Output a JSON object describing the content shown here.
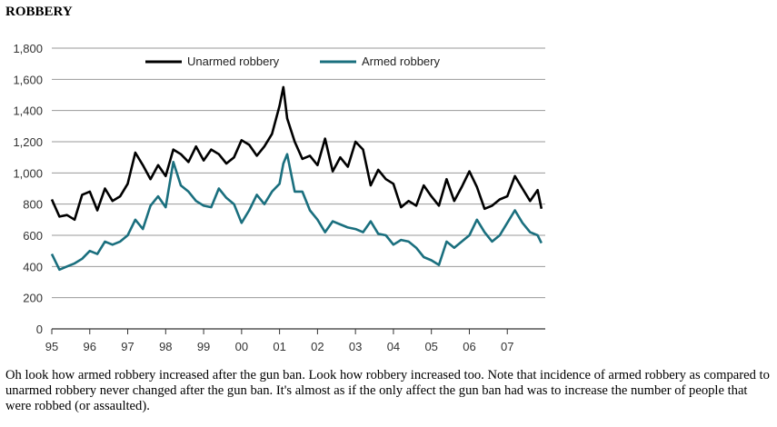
{
  "heading": "ROBBERY",
  "caption": "Oh look how armed robbery increased after the gun ban. Look how robbery increased too. Note that incidence of armed robbery as compared to unarmed robbery never changed after the gun ban. It's almost as if the only affect the gun ban had was to increase the number of people that were robbed (or assaulted).",
  "chart_data": {
    "type": "line",
    "title": "",
    "xlabel": "",
    "ylabel": "",
    "ylim": [
      0,
      1800
    ],
    "yticks": [
      0,
      200,
      400,
      600,
      800,
      1000,
      1200,
      1400,
      1600,
      1800
    ],
    "ytick_labels": [
      "0",
      "200",
      "400",
      "600",
      "800",
      "1,000",
      "1,200",
      "1,400",
      "1,600",
      "1,800"
    ],
    "xlim": [
      1995,
      2008
    ],
    "xticks": [
      1995,
      1996,
      1997,
      1998,
      1999,
      2000,
      2001,
      2002,
      2003,
      2004,
      2005,
      2006,
      2007
    ],
    "xtick_labels": [
      "95",
      "96",
      "97",
      "98",
      "99",
      "00",
      "01",
      "02",
      "03",
      "04",
      "05",
      "06",
      "07"
    ],
    "grid": "horizontal",
    "legend_position": "top",
    "series": [
      {
        "name": "Unarmed robbery",
        "color": "#000000",
        "x": [
          1995.0,
          1995.2,
          1995.4,
          1995.6,
          1995.8,
          1996.0,
          1996.2,
          1996.4,
          1996.6,
          1996.8,
          1997.0,
          1997.2,
          1997.4,
          1997.6,
          1997.8,
          1998.0,
          1998.2,
          1998.4,
          1998.6,
          1998.8,
          1999.0,
          1999.2,
          1999.4,
          1999.6,
          1999.8,
          2000.0,
          2000.2,
          2000.4,
          2000.6,
          2000.8,
          2001.0,
          2001.1,
          2001.2,
          2001.4,
          2001.6,
          2001.8,
          2002.0,
          2002.2,
          2002.4,
          2002.6,
          2002.8,
          2003.0,
          2003.2,
          2003.4,
          2003.6,
          2003.8,
          2004.0,
          2004.2,
          2004.4,
          2004.6,
          2004.8,
          2005.0,
          2005.2,
          2005.4,
          2005.6,
          2005.8,
          2006.0,
          2006.2,
          2006.4,
          2006.6,
          2006.8,
          2007.0,
          2007.2,
          2007.4,
          2007.6,
          2007.8,
          2007.9
        ],
        "values": [
          830,
          720,
          730,
          700,
          860,
          880,
          760,
          900,
          820,
          850,
          930,
          1130,
          1050,
          960,
          1050,
          980,
          1150,
          1120,
          1070,
          1170,
          1080,
          1150,
          1120,
          1060,
          1100,
          1210,
          1180,
          1110,
          1170,
          1250,
          1430,
          1550,
          1350,
          1200,
          1090,
          1110,
          1050,
          1220,
          1010,
          1100,
          1040,
          1200,
          1150,
          920,
          1020,
          960,
          930,
          780,
          820,
          790,
          920,
          850,
          790,
          960,
          820,
          910,
          1010,
          910,
          770,
          790,
          830,
          850,
          980,
          900,
          820,
          890,
          770
        ]
      },
      {
        "name": "Armed robbery",
        "color": "#1a6f7e",
        "x": [
          1995.0,
          1995.2,
          1995.4,
          1995.6,
          1995.8,
          1996.0,
          1996.2,
          1996.4,
          1996.6,
          1996.8,
          1997.0,
          1997.2,
          1997.4,
          1997.6,
          1997.8,
          1998.0,
          1998.2,
          1998.4,
          1998.6,
          1998.8,
          1999.0,
          1999.2,
          1999.4,
          1999.6,
          1999.8,
          2000.0,
          2000.2,
          2000.4,
          2000.6,
          2000.8,
          2001.0,
          2001.1,
          2001.2,
          2001.4,
          2001.6,
          2001.8,
          2002.0,
          2002.2,
          2002.4,
          2002.6,
          2002.8,
          2003.0,
          2003.2,
          2003.4,
          2003.6,
          2003.8,
          2004.0,
          2004.2,
          2004.4,
          2004.6,
          2004.8,
          2005.0,
          2005.2,
          2005.4,
          2005.6,
          2005.8,
          2006.0,
          2006.2,
          2006.4,
          2006.6,
          2006.8,
          2007.0,
          2007.2,
          2007.4,
          2007.6,
          2007.8,
          2007.9
        ],
        "values": [
          480,
          380,
          400,
          420,
          450,
          500,
          480,
          560,
          540,
          560,
          600,
          700,
          640,
          790,
          850,
          780,
          1070,
          920,
          880,
          820,
          790,
          780,
          900,
          840,
          800,
          680,
          760,
          860,
          800,
          880,
          930,
          1060,
          1120,
          880,
          880,
          760,
          700,
          620,
          690,
          670,
          650,
          640,
          620,
          690,
          610,
          600,
          540,
          570,
          560,
          520,
          460,
          440,
          410,
          560,
          520,
          560,
          600,
          700,
          620,
          560,
          600,
          680,
          760,
          680,
          620,
          600,
          550
        ]
      }
    ]
  }
}
